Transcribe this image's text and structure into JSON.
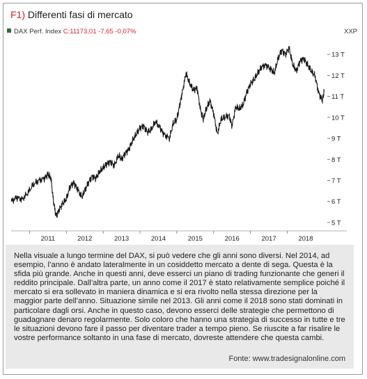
{
  "figure": {
    "number": "F1)",
    "title": "Differenti fasi di mercato"
  },
  "legend": {
    "series_name": "DAX Perf. Index",
    "value_text": "C:11173,01 -7,65 -0,07%",
    "currency": "XXP"
  },
  "colors": {
    "line": "#1a1a1a",
    "accent": "#d2232a",
    "legend_marker": "#2f6b3a",
    "caption_bg": "#e9e9e9"
  },
  "chart_data": {
    "type": "line",
    "series": [
      {
        "name": "DAX Perf. Index",
        "x": [
          2010.5,
          2010.65,
          2010.8,
          2010.95,
          2011.1,
          2011.25,
          2011.4,
          2011.5,
          2011.58,
          2011.65,
          2011.72,
          2011.8,
          2011.9,
          2012.0,
          2012.1,
          2012.2,
          2012.3,
          2012.42,
          2012.5,
          2012.6,
          2012.7,
          2012.8,
          2012.9,
          2013.0,
          2013.1,
          2013.2,
          2013.3,
          2013.42,
          2013.5,
          2013.6,
          2013.7,
          2013.8,
          2013.9,
          2014.0,
          2014.1,
          2014.2,
          2014.3,
          2014.42,
          2014.55,
          2014.65,
          2014.8,
          2014.9,
          2015.0,
          2015.08,
          2015.15,
          2015.25,
          2015.35,
          2015.45,
          2015.55,
          2015.65,
          2015.72,
          2015.8,
          2015.9,
          2016.0,
          2016.1,
          2016.2,
          2016.3,
          2016.42,
          2016.5,
          2016.6,
          2016.7,
          2016.8,
          2016.9,
          2017.0,
          2017.1,
          2017.2,
          2017.3,
          2017.42,
          2017.55,
          2017.65,
          2017.75,
          2017.85,
          2017.95,
          2018.05,
          2018.15,
          2018.25,
          2018.35,
          2018.45,
          2018.55,
          2018.65,
          2018.75,
          2018.85,
          2018.95,
          2019.0
        ],
        "values": [
          6.0,
          6.2,
          6.1,
          6.4,
          6.8,
          7.0,
          7.1,
          7.3,
          7.1,
          6.0,
          5.3,
          5.6,
          5.9,
          6.1,
          6.7,
          6.9,
          6.6,
          6.2,
          6.5,
          6.9,
          7.2,
          7.1,
          7.4,
          7.6,
          7.8,
          7.9,
          7.7,
          8.2,
          8.0,
          8.3,
          8.5,
          8.9,
          9.2,
          9.5,
          9.6,
          9.3,
          9.4,
          9.8,
          9.5,
          9.2,
          9.0,
          9.7,
          9.9,
          10.6,
          11.2,
          12.1,
          11.6,
          11.3,
          11.4,
          10.3,
          9.9,
          10.4,
          10.8,
          10.2,
          9.2,
          9.9,
          10.0,
          10.1,
          9.6,
          10.5,
          10.4,
          10.6,
          11.2,
          11.6,
          11.8,
          12.1,
          12.4,
          12.5,
          12.3,
          12.1,
          12.8,
          13.2,
          13.0,
          13.3,
          12.5,
          12.2,
          12.7,
          12.8,
          12.5,
          12.2,
          12.0,
          11.2,
          10.8,
          11.2
        ]
      }
    ],
    "xlim": [
      2010.5,
      2019.05
    ],
    "ylim": [
      4.6,
      13.8
    ],
    "y_ticks": [
      5,
      6,
      7,
      8,
      9,
      10,
      11,
      12,
      13
    ],
    "y_tick_labels": [
      "5 T",
      "6 T",
      "7 T",
      "8 T",
      "9 T",
      "10 T",
      "11 T",
      "12 T",
      "13 T"
    ],
    "x_ticks": [
      2011,
      2012,
      2013,
      2014,
      2015,
      2016,
      2017,
      2018
    ],
    "x_tick_labels": [
      "2011",
      "2012",
      "2013",
      "2014",
      "2015",
      "2016",
      "2017",
      "2018"
    ],
    "grid": false
  },
  "caption": {
    "text": "Nella visuale a lungo termine del DAX, si può vedere che gli anni sono diversi. Nel 2014, ad esempio, l’anno è andato lateralmente in un cosiddetto mercato a dente di sega. Questa è la sfida più grande. Anche in questi anni, deve esserci un piano di trading funzionante che generi il reddito principale. Dall’altra parte, un anno come il 2017 è stato relativamente semplice poiché il mercato si era sollevato in maniera dinamica e si era rivolto nella stessa direzione per la maggior parte dell’anno. Situazione simile nel 2013. Gli anni come il 2018 sono stati dominati in particolare dagli orsi. Anche in questo caso, devono esserci delle strategie che permettono di guadagnare denaro regolarmente. Solo coloro che hanno una strategia di successo in tutte e tre le situazioni devono fare il passo per diventare trader a tempo pieno. Se riuscite a far risalire le vostre performance soltanto in una fase di mercato, dovreste attendere che questa cambi.",
    "source": "Fonte: www.tradesignalonline.com"
  }
}
